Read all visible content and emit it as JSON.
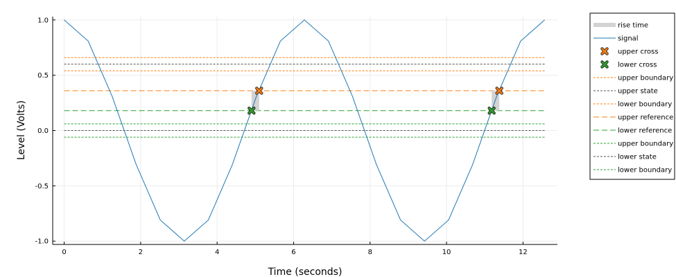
{
  "chart_data": {
    "type": "line",
    "xlabel": "Time (seconds)",
    "ylabel": "Level (Volts)",
    "xlim": [
      -0.3,
      12.9
    ],
    "ylim": [
      -1.03,
      1.03
    ],
    "xticks": [
      0,
      2,
      4,
      6,
      8,
      10,
      12
    ],
    "xtick_labels": [
      "0",
      "2",
      "4",
      "6",
      "8",
      "10",
      "12"
    ],
    "yticks": [
      1.0,
      0.5,
      0.0,
      -0.5,
      -1.0
    ],
    "ytick_labels": [
      "1.0",
      "0.5",
      "0.0",
      "-0.5",
      "-1.0"
    ],
    "grid": true,
    "legend_position": "outer-right",
    "colors": {
      "signal": "#1f77b4",
      "orange": "#ff7f0e",
      "green": "#2ca02c",
      "state": "#555555",
      "rise": "#d3d3d3"
    },
    "signal": {
      "name": "signal",
      "x": [
        0,
        0.6283,
        1.2566,
        1.885,
        2.5133,
        3.1416,
        3.7699,
        4.3982,
        5.0265,
        5.6549,
        6.2832,
        6.9115,
        7.5398,
        8.1681,
        8.7965,
        9.4248,
        10.0531,
        10.6814,
        11.3097,
        11.9381,
        12.5664
      ],
      "y": [
        1.0,
        0.809,
        0.309,
        -0.309,
        -0.809,
        -1.0,
        -0.809,
        -0.309,
        0.309,
        0.809,
        1.0,
        0.809,
        0.309,
        -0.309,
        -0.809,
        -1.0,
        -0.809,
        -0.309,
        0.309,
        0.809,
        1.0
      ]
    },
    "rise_time": {
      "name": "rise time",
      "intervals": [
        [
          4.9,
          5.1
        ],
        [
          11.18,
          11.38
        ]
      ],
      "y_low": 0.18,
      "y_high": 0.36
    },
    "upper_cross": {
      "name": "upper cross",
      "points": [
        [
          5.1,
          0.36
        ],
        [
          11.38,
          0.36
        ]
      ]
    },
    "lower_cross": {
      "name": "lower cross",
      "points": [
        [
          4.9,
          0.18
        ],
        [
          11.18,
          0.18
        ]
      ]
    },
    "levels": [
      {
        "name": "upper boundary",
        "y": 0.66,
        "color": "#ff7f0e",
        "dash": "short"
      },
      {
        "name": "upper state",
        "y": 0.6,
        "color": "#555555",
        "dash": "short"
      },
      {
        "name": "lower boundary",
        "y": 0.54,
        "color": "#ff7f0e",
        "dash": "short"
      },
      {
        "name": "upper reference",
        "y": 0.36,
        "color": "#ff7f0e",
        "dash": "long"
      },
      {
        "name": "lower reference",
        "y": 0.18,
        "color": "#2ca02c",
        "dash": "long"
      },
      {
        "name": "upper boundary",
        "y": 0.06,
        "color": "#2ca02c",
        "dash": "short"
      },
      {
        "name": "lower state",
        "y": 0.0,
        "color": "#555555",
        "dash": "short"
      },
      {
        "name": "lower boundary",
        "y": -0.06,
        "color": "#2ca02c",
        "dash": "short"
      }
    ],
    "legend": [
      {
        "label": "rise time",
        "kind": "band",
        "color": "#d3d3d3"
      },
      {
        "label": "signal",
        "kind": "line",
        "color": "#1f77b4"
      },
      {
        "label": "upper cross",
        "kind": "xmarker",
        "color": "#ff7f0e"
      },
      {
        "label": "lower cross",
        "kind": "xmarker",
        "color": "#2ca02c"
      },
      {
        "label": "upper boundary",
        "kind": "short",
        "color": "#ff7f0e"
      },
      {
        "label": "upper state",
        "kind": "short",
        "color": "#555555"
      },
      {
        "label": "lower boundary",
        "kind": "short",
        "color": "#ff7f0e"
      },
      {
        "label": "upper reference",
        "kind": "long",
        "color": "#ff7f0e"
      },
      {
        "label": "lower reference",
        "kind": "long",
        "color": "#2ca02c"
      },
      {
        "label": "upper boundary",
        "kind": "short",
        "color": "#2ca02c"
      },
      {
        "label": "lower state",
        "kind": "short",
        "color": "#555555"
      },
      {
        "label": "lower boundary",
        "kind": "short",
        "color": "#2ca02c"
      }
    ]
  }
}
